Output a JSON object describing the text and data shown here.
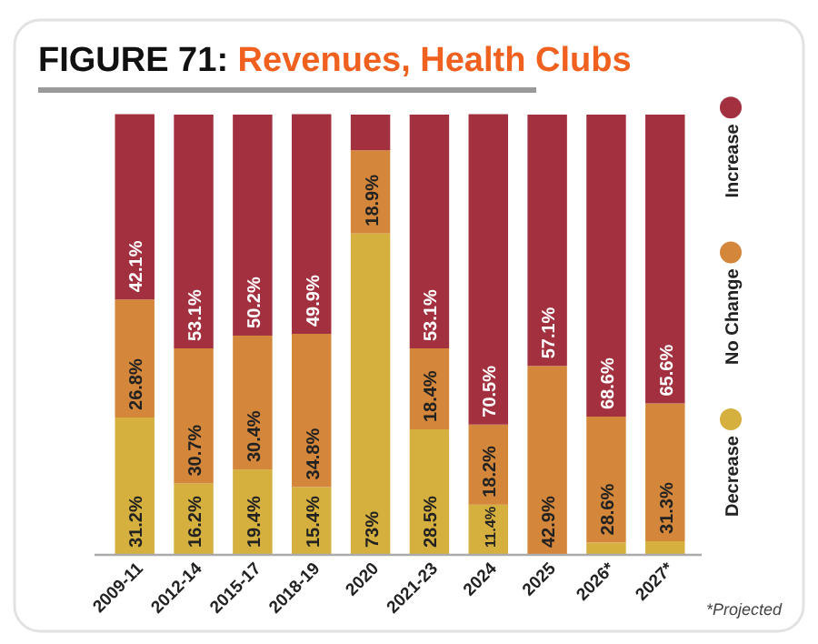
{
  "chart_data": {
    "type": "bar",
    "title": "FIGURE 71: Revenues, Health Clubs",
    "stacked": true,
    "categories": [
      "2009-11",
      "2012-14",
      "2015-17",
      "2018-19",
      "2020",
      "2021-23",
      "2024",
      "2025",
      "2026*",
      "2027*"
    ],
    "series": [
      {
        "name": "Decrease",
        "color": "#d5b03e",
        "values": [
          31.2,
          16.2,
          19.4,
          15.4,
          73,
          28.5,
          11.4,
          0,
          2.8,
          3.1
        ],
        "value_labels": [
          "31.2%",
          "16.2%",
          "19.4%",
          "15.4%",
          "73%",
          "28.5%",
          "11.4%",
          null,
          null,
          null
        ]
      },
      {
        "name": "No Change",
        "color": "#d4873a",
        "values": [
          26.8,
          30.7,
          30.4,
          34.8,
          18.9,
          18.4,
          18.2,
          42.9,
          28.6,
          31.3
        ],
        "value_labels": [
          "26.8%",
          "30.7%",
          "30.4%",
          "34.8%",
          "18.9%",
          "18.4%",
          "18.2%",
          "42.9%",
          "28.6%",
          "31.3%"
        ]
      },
      {
        "name": "Increase",
        "color": "#a2303e",
        "values": [
          42.1,
          53.1,
          50.2,
          49.9,
          8.1,
          53.1,
          70.5,
          57.1,
          68.6,
          65.6
        ],
        "value_labels": [
          "42.1%",
          "53.1%",
          "50.2%",
          "49.9%",
          null,
          "53.1%",
          "70.5%",
          "57.1%",
          "68.6%",
          "65.6%"
        ]
      }
    ],
    "ylim": [
      0,
      100
    ],
    "tick_labels": "x",
    "legend": "right",
    "annotations": [
      "*Projected"
    ]
  }
}
